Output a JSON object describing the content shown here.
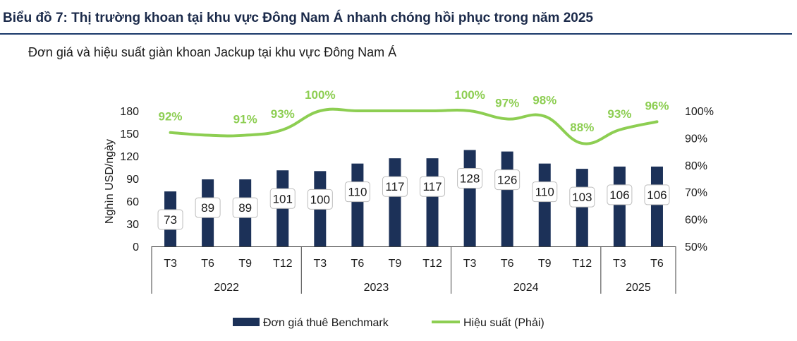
{
  "header": {
    "title": "Biểu đồ 7: Thị trường khoan tại khu vực Đông Nam Á nhanh chóng hồi phục trong năm 2025",
    "subtitle": "Đơn giá và hiệu suất giàn khoan Jackup tại khu vực Đông Nam Á"
  },
  "colors": {
    "bar": "#1c3158",
    "line": "#8dce52",
    "rule": "#1b3a6b"
  },
  "chart_data": {
    "type": "bar",
    "categories": [
      "T3",
      "T6",
      "T9",
      "T12",
      "T3",
      "T6",
      "T9",
      "T12",
      "T3",
      "T6",
      "T9",
      "T12",
      "T3",
      "T6"
    ],
    "groups": [
      {
        "label": "2022",
        "count": 4
      },
      {
        "label": "2023",
        "count": 4
      },
      {
        "label": "2024",
        "count": 4
      },
      {
        "label": "2025",
        "count": 2
      }
    ],
    "series": [
      {
        "name": "Đơn giá thuê Benchmark",
        "type": "bar",
        "axis": "left",
        "values": [
          73,
          89,
          89,
          101,
          100,
          110,
          117,
          117,
          128,
          126,
          110,
          103,
          106,
          106
        ]
      },
      {
        "name": "Hiệu suất (Phải)",
        "type": "line",
        "axis": "right",
        "values": [
          92,
          91,
          91,
          93,
          100,
          100,
          100,
          100,
          100,
          97,
          98,
          88,
          93,
          96
        ]
      }
    ],
    "line_labels": [
      "92%",
      "",
      "91%",
      "93%",
      "100%",
      "",
      "",
      "",
      "100%",
      "97%",
      "98%",
      "88%",
      "93%",
      "96%"
    ],
    "ylabel": "Nghìn USD/ngày",
    "ylim": [
      0,
      180
    ],
    "yticks": [
      "0",
      "30",
      "60",
      "90",
      "120",
      "150",
      "180"
    ],
    "y2lim": [
      50,
      100
    ],
    "y2ticks": [
      "50%",
      "60%",
      "70%",
      "80%",
      "90%",
      "100%"
    ],
    "legend_position": "bottom",
    "grid": false
  }
}
